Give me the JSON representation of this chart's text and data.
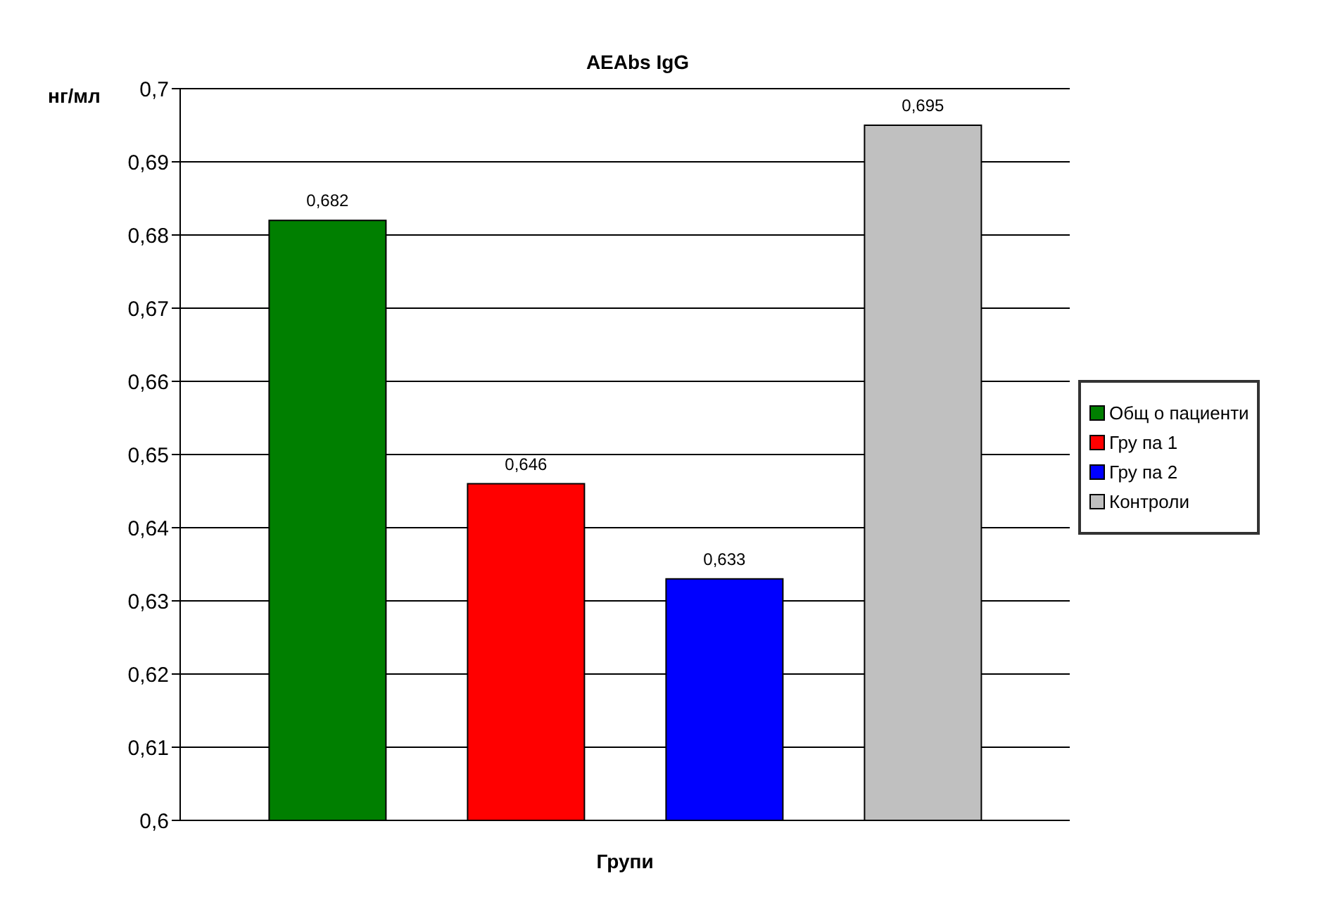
{
  "chart_data": {
    "type": "bar",
    "title": "AEAbs IgG",
    "ylabel": "нг/мл",
    "xlabel": "Групи",
    "categories": [
      null
    ],
    "series": [
      {
        "name": "Общ о пациенти",
        "color": "#007f00",
        "values": [
          0.682
        ],
        "value_labels": [
          "0,682"
        ]
      },
      {
        "name": "Гру па 1",
        "color": "#ff0000",
        "values": [
          0.646
        ],
        "value_labels": [
          "0,646"
        ]
      },
      {
        "name": "Гру па 2",
        "color": "#0000ff",
        "values": [
          0.633
        ],
        "value_labels": [
          "0,633"
        ]
      },
      {
        "name": "Контроли",
        "color": "#c0c0c0",
        "values": [
          0.695
        ],
        "value_labels": [
          "0,695"
        ]
      }
    ],
    "ylim": [
      0.6,
      0.7
    ],
    "yticks": [
      {
        "value": 0.6,
        "label": "0,6"
      },
      {
        "value": 0.61,
        "label": "0,61"
      },
      {
        "value": 0.62,
        "label": "0,62"
      },
      {
        "value": 0.63,
        "label": "0,63"
      },
      {
        "value": 0.64,
        "label": "0,64"
      },
      {
        "value": 0.65,
        "label": "0,65"
      },
      {
        "value": 0.66,
        "label": "0,66"
      },
      {
        "value": 0.67,
        "label": "0,67"
      },
      {
        "value": 0.68,
        "label": "0,68"
      },
      {
        "value": 0.69,
        "label": "0,69"
      },
      {
        "value": 0.7,
        "label": "0,7"
      }
    ],
    "grid": "y",
    "legend": "right"
  }
}
